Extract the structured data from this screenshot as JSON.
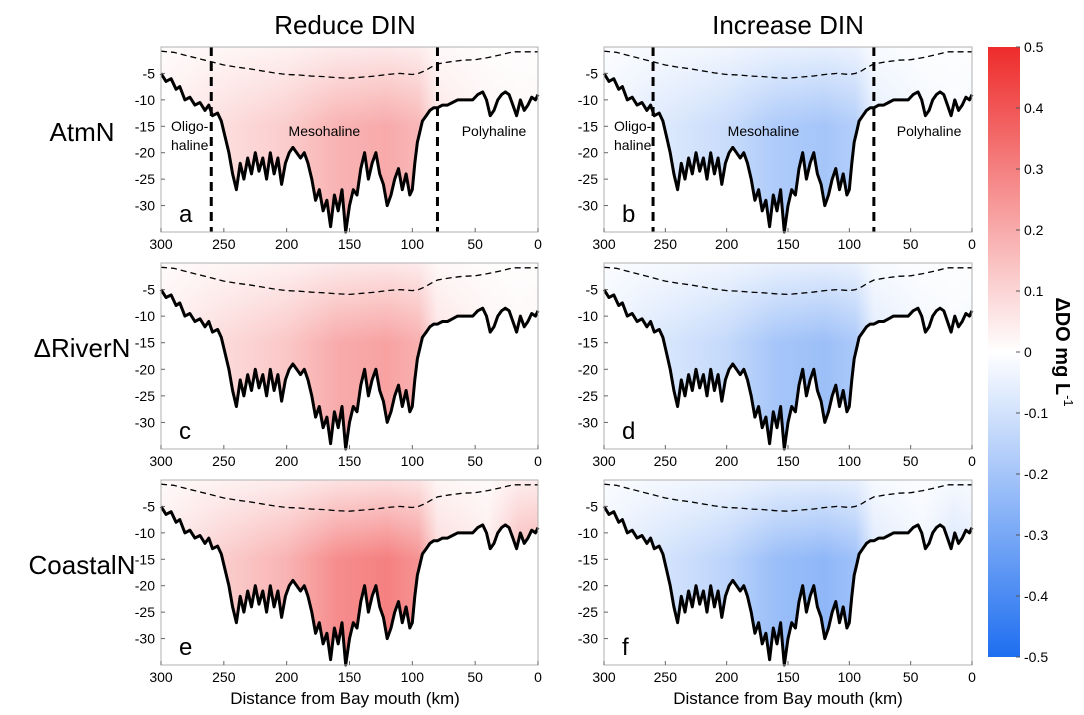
{
  "column_titles": [
    "Reduce DIN",
    "Increase DIN"
  ],
  "row_labels": [
    "AtmN",
    "ΔRiverN",
    "CoastalN"
  ],
  "panel_letters": [
    "a",
    "b",
    "c",
    "d",
    "e",
    "f"
  ],
  "x_axis_label": "Distance from Bay mouth (km)",
  "colorbar": {
    "label": "ΔDO mg L",
    "label_superscript": "-1",
    "ticks": [
      "0.5",
      "0.4",
      "0.3",
      "0.2",
      "0.1",
      "0",
      "-0.1",
      "-0.2",
      "-0.3",
      "-0.4",
      "-0.5"
    ],
    "colors": {
      "max": "#ee2b2b",
      "mid": "#ffffff",
      "min": "#1e6ef0"
    }
  },
  "region_labels": {
    "oligo": [
      "Oligo-",
      "haline"
    ],
    "meso": "Mesohaline",
    "poly": "Polyhaline"
  },
  "chart_data": [
    {
      "panel": "a",
      "type": "heatmap",
      "row": "AtmN",
      "column": "Reduce DIN",
      "sign": "positive",
      "peak_dDO": 0.2,
      "xlim": [
        300,
        0
      ],
      "ylim": [
        -35,
        0
      ],
      "x_ticks": [
        "300",
        "250",
        "200",
        "150",
        "100",
        "50",
        "0"
      ],
      "y_ticks": [
        "-5",
        "-10",
        "-15",
        "-20",
        "-25",
        "-30"
      ],
      "boundaries_km": [
        260,
        80
      ]
    },
    {
      "panel": "b",
      "type": "heatmap",
      "row": "AtmN",
      "column": "Increase DIN",
      "sign": "negative",
      "peak_dDO": -0.2,
      "xlim": [
        300,
        0
      ],
      "ylim": [
        -35,
        0
      ],
      "x_ticks": [
        "300",
        "250",
        "200",
        "150",
        "100",
        "50",
        "0"
      ],
      "y_ticks": [
        "-5",
        "-10",
        "-15",
        "-20",
        "-25",
        "-30"
      ],
      "boundaries_km": [
        260,
        80
      ]
    },
    {
      "panel": "c",
      "type": "heatmap",
      "row": "ΔRiverN",
      "column": "Reduce DIN",
      "sign": "positive",
      "peak_dDO": 0.22,
      "xlim": [
        300,
        0
      ],
      "ylim": [
        -35,
        0
      ],
      "x_ticks": [
        "300",
        "250",
        "200",
        "150",
        "100",
        "50",
        "0"
      ],
      "y_ticks": [
        "-5",
        "-10",
        "-15",
        "-20",
        "-25",
        "-30"
      ]
    },
    {
      "panel": "d",
      "type": "heatmap",
      "row": "ΔRiverN",
      "column": "Increase DIN",
      "sign": "negative",
      "peak_dDO": -0.22,
      "xlim": [
        300,
        0
      ],
      "ylim": [
        -35,
        0
      ],
      "x_ticks": [
        "300",
        "250",
        "200",
        "150",
        "100",
        "50",
        "0"
      ],
      "y_ticks": [
        "-5",
        "-10",
        "-15",
        "-20",
        "-25",
        "-30"
      ]
    },
    {
      "panel": "e",
      "type": "heatmap",
      "row": "CoastalN",
      "column": "Reduce DIN",
      "sign": "positive",
      "peak_dDO": 0.3,
      "xlim": [
        300,
        0
      ],
      "ylim": [
        -35,
        0
      ],
      "x_ticks": [
        "300",
        "250",
        "200",
        "150",
        "100",
        "50",
        "0"
      ],
      "y_ticks": [
        "-5",
        "-10",
        "-15",
        "-20",
        "-25",
        "-30"
      ]
    },
    {
      "panel": "f",
      "type": "heatmap",
      "row": "CoastalN",
      "column": "Increase DIN",
      "sign": "negative",
      "peak_dDO": -0.25,
      "xlim": [
        300,
        0
      ],
      "ylim": [
        -35,
        0
      ],
      "x_ticks": [
        "300",
        "250",
        "200",
        "150",
        "100",
        "50",
        "0"
      ],
      "y_ticks": [
        "-5",
        "-10",
        "-15",
        "-20",
        "-25",
        "-30"
      ]
    }
  ],
  "bathymetry": {
    "unit_x": "km",
    "unit_y": "m",
    "points": [
      [
        300,
        -5
      ],
      [
        296,
        -6.5
      ],
      [
        292,
        -6
      ],
      [
        288,
        -8
      ],
      [
        285,
        -7.5
      ],
      [
        281,
        -10
      ],
      [
        277,
        -9.5
      ],
      [
        273,
        -11
      ],
      [
        269,
        -10.5
      ],
      [
        265,
        -12
      ],
      [
        262,
        -11
      ],
      [
        259,
        -13
      ],
      [
        255,
        -12.5
      ],
      [
        252,
        -14
      ],
      [
        249,
        -17
      ],
      [
        246,
        -20
      ],
      [
        243,
        -24
      ],
      [
        240,
        -27
      ],
      [
        237,
        -22
      ],
      [
        234,
        -25
      ],
      [
        231,
        -21
      ],
      [
        228,
        -24
      ],
      [
        225,
        -20
      ],
      [
        222,
        -23.5
      ],
      [
        219,
        -21
      ],
      [
        216,
        -25
      ],
      [
        213,
        -20
      ],
      [
        210,
        -24
      ],
      [
        207,
        -21
      ],
      [
        204,
        -26
      ],
      [
        201,
        -22
      ],
      [
        198,
        -20
      ],
      [
        195,
        -19
      ],
      [
        192,
        -20
      ],
      [
        189,
        -21
      ],
      [
        186,
        -20
      ],
      [
        183,
        -22
      ],
      [
        180,
        -25
      ],
      [
        177,
        -29
      ],
      [
        174,
        -27
      ],
      [
        171,
        -31
      ],
      [
        168,
        -29
      ],
      [
        165,
        -34
      ],
      [
        162,
        -28
      ],
      [
        159,
        -31
      ],
      [
        156,
        -27
      ],
      [
        153,
        -35
      ],
      [
        150,
        -30
      ],
      [
        147,
        -27
      ],
      [
        144,
        -28
      ],
      [
        141,
        -23
      ],
      [
        138,
        -20
      ],
      [
        135,
        -25
      ],
      [
        132,
        -22
      ],
      [
        129,
        -20
      ],
      [
        126,
        -24
      ],
      [
        123,
        -26
      ],
      [
        120,
        -30
      ],
      [
        117,
        -28
      ],
      [
        114,
        -25
      ],
      [
        111,
        -23
      ],
      [
        108,
        -27
      ],
      [
        105,
        -24
      ],
      [
        102,
        -28
      ],
      [
        100,
        -27
      ],
      [
        98,
        -22
      ],
      [
        96,
        -18
      ],
      [
        94,
        -16
      ],
      [
        92,
        -14
      ],
      [
        89,
        -13
      ],
      [
        86,
        -12
      ],
      [
        83,
        -11.5
      ],
      [
        80,
        -11.5
      ],
      [
        76,
        -11
      ],
      [
        72,
        -11
      ],
      [
        68,
        -10.5
      ],
      [
        64,
        -10
      ],
      [
        60,
        -10
      ],
      [
        56,
        -10
      ],
      [
        52,
        -10
      ],
      [
        48,
        -9
      ],
      [
        44,
        -8.5
      ],
      [
        41,
        -10
      ],
      [
        38,
        -13
      ],
      [
        35,
        -12
      ],
      [
        32,
        -10
      ],
      [
        29,
        -9
      ],
      [
        26,
        -8.5
      ],
      [
        23,
        -9
      ],
      [
        20,
        -11
      ],
      [
        17,
        -13
      ],
      [
        14,
        -10
      ],
      [
        11,
        -12
      ],
      [
        8,
        -11
      ],
      [
        5,
        -9.5
      ],
      [
        2,
        -10
      ],
      [
        0,
        -9
      ]
    ],
    "pycnocline": [
      [
        300,
        -0.8
      ],
      [
        290,
        -1
      ],
      [
        280,
        -1.6
      ],
      [
        270,
        -2.2
      ],
      [
        260,
        -2.8
      ],
      [
        250,
        -3.4
      ],
      [
        240,
        -3.8
      ],
      [
        230,
        -4.1
      ],
      [
        220,
        -4.5
      ],
      [
        210,
        -4.9
      ],
      [
        200,
        -5.2
      ],
      [
        190,
        -5.3
      ],
      [
        180,
        -5.5
      ],
      [
        170,
        -5.6
      ],
      [
        160,
        -5.8
      ],
      [
        150,
        -5.9
      ],
      [
        140,
        -5.7
      ],
      [
        130,
        -5.5
      ],
      [
        120,
        -5.2
      ],
      [
        110,
        -5.0
      ],
      [
        100,
        -5.2
      ],
      [
        95,
        -5.0
      ],
      [
        90,
        -4.5
      ],
      [
        85,
        -3.8
      ],
      [
        80,
        -3.2
      ],
      [
        70,
        -2.8
      ],
      [
        60,
        -2.5
      ],
      [
        50,
        -2.4
      ],
      [
        40,
        -2.0
      ],
      [
        30,
        -1.5
      ],
      [
        20,
        -0.9
      ],
      [
        10,
        -0.9
      ],
      [
        0,
        -0.9
      ]
    ]
  }
}
